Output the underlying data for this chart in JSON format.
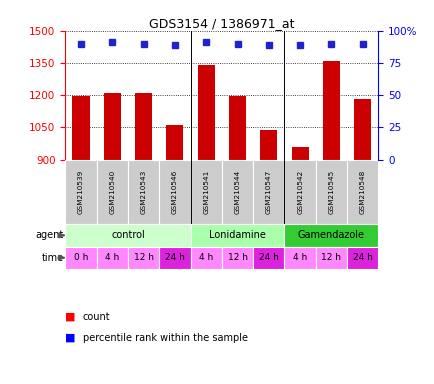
{
  "title": "GDS3154 / 1386971_at",
  "samples": [
    "GSM210539",
    "GSM210540",
    "GSM210543",
    "GSM210546",
    "GSM210541",
    "GSM210544",
    "GSM210547",
    "GSM210542",
    "GSM210545",
    "GSM210548"
  ],
  "counts": [
    1195,
    1210,
    1210,
    1063,
    1340,
    1195,
    1040,
    960,
    1360,
    1183
  ],
  "percentiles": [
    90,
    91,
    90,
    89,
    91,
    90,
    89,
    89,
    90,
    90
  ],
  "bar_color": "#cc0000",
  "dot_color": "#2222cc",
  "ylim_left": [
    900,
    1500
  ],
  "ylim_right": [
    0,
    100
  ],
  "yticks_left": [
    900,
    1050,
    1200,
    1350,
    1500
  ],
  "yticks_right": [
    0,
    25,
    50,
    75,
    100
  ],
  "agent_defs": [
    {
      "label": "control",
      "start": 0,
      "end": 4,
      "color": "#ccffcc"
    },
    {
      "label": "Lonidamine",
      "start": 4,
      "end": 7,
      "color": "#aaffaa"
    },
    {
      "label": "Gamendazole",
      "start": 7,
      "end": 10,
      "color": "#33cc33"
    }
  ],
  "times": [
    "0 h",
    "4 h",
    "12 h",
    "24 h",
    "4 h",
    "12 h",
    "24 h",
    "4 h",
    "12 h",
    "24 h"
  ],
  "time_colors": [
    "#ff88ff",
    "#ff88ff",
    "#ff88ff",
    "#dd22dd",
    "#ff88ff",
    "#ff88ff",
    "#dd22dd",
    "#ff88ff",
    "#ff88ff",
    "#dd22dd"
  ],
  "sample_row_color": "#cccccc",
  "sample_row_edge": "#ffffff"
}
